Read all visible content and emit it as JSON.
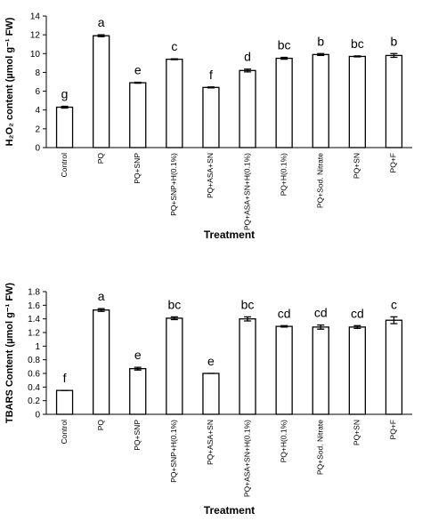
{
  "chart_data": [
    {
      "type": "bar",
      "y_label": "H₂O₂ content (µmol g⁻¹ FW)",
      "x_label": "Treatment",
      "categories": [
        "Control",
        "PQ",
        "PQ+SNP",
        "PQ+SNP+H(0.1%)",
        "PQ+ASA+SN",
        "PQ+ASA+SN+H(0.1%)",
        "PQ+H(0.1%)",
        "PQ+Sod. Nitrate",
        "PQ+SN",
        "PQ+F"
      ],
      "values": [
        4.3,
        11.9,
        6.9,
        9.4,
        6.4,
        8.2,
        9.5,
        9.9,
        9.7,
        9.8
      ],
      "errors": [
        0.1,
        0.1,
        0.05,
        0.05,
        0.05,
        0.15,
        0.1,
        0.1,
        0.05,
        0.2
      ],
      "annotations": [
        "g",
        "a",
        "e",
        "c",
        "f",
        "d",
        "bc",
        "b",
        "bc",
        "b"
      ],
      "color": "#ffffff",
      "ylim": [
        0,
        14
      ],
      "yticks": [
        0,
        2,
        4,
        6,
        8,
        10,
        12,
        14
      ]
    },
    {
      "type": "bar",
      "y_label": "TBARS Content (µmol g⁻¹ FW)",
      "x_label": "Treatment",
      "categories": [
        "Control",
        "PQ",
        "PQ+SNP",
        "PQ+SNP+H(0.1%)",
        "PQ+ASA+SN",
        "PQ+ASA+SN+H(0.1%)",
        "PQ+H(0.1%)",
        "PQ+Sod. Nitrate",
        "PQ+SN",
        "PQ+F"
      ],
      "values": [
        0.35,
        1.53,
        0.67,
        1.41,
        0.6,
        1.4,
        1.29,
        1.28,
        1.28,
        1.38
      ],
      "errors": [
        0,
        0.02,
        0.02,
        0.02,
        0,
        0.03,
        0.01,
        0.03,
        0.02,
        0.05
      ],
      "annotations": [
        "f",
        "a",
        "e",
        "bc",
        "e",
        "bc",
        "cd",
        "cd",
        "cd",
        "c"
      ],
      "color": "#ffffff",
      "ylim": [
        0,
        1.8
      ],
      "yticks": [
        0,
        0.2,
        0.4,
        0.6,
        0.8,
        1,
        1.2,
        1.4,
        1.6,
        1.8
      ]
    }
  ]
}
